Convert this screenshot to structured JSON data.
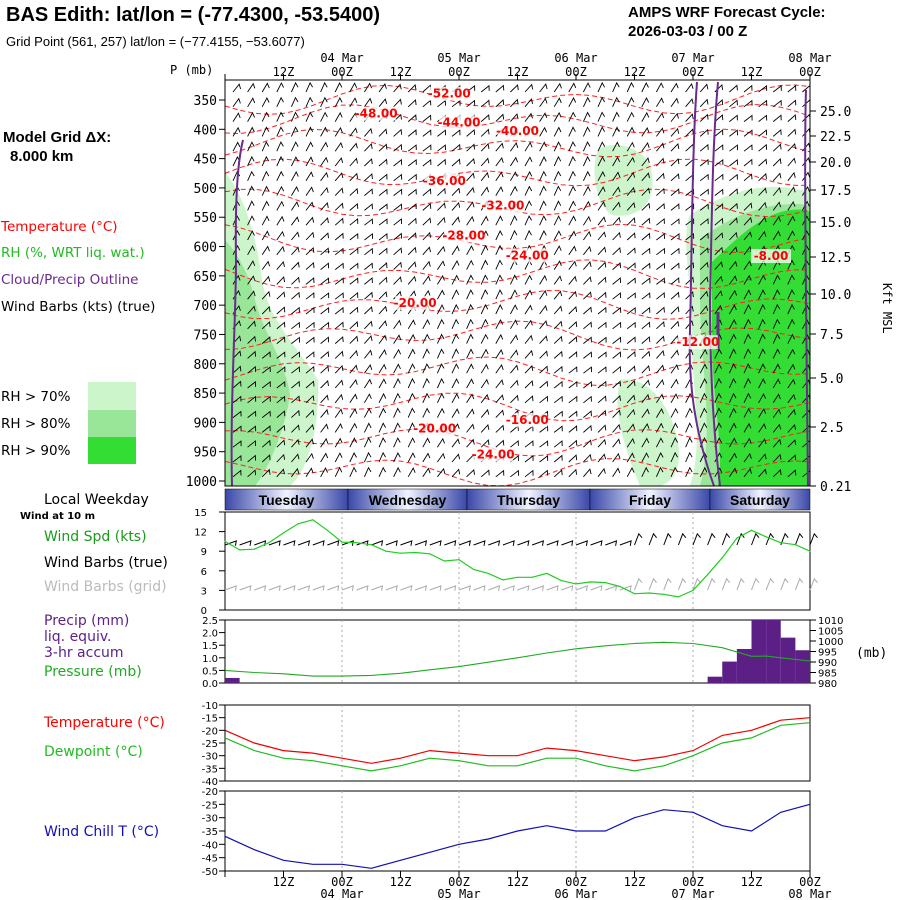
{
  "header": {
    "title": "BAS Edith:  lat/lon = (-77.4300, -53.5400)",
    "subtitle": "Grid Point (561, 257) lat/lon = (−77.4155, −53.6077)",
    "cycle_label": "AMPS WRF Forecast Cycle:",
    "cycle_value": "2026-03-03 / 00  Z"
  },
  "legend": {
    "grid_label": "Model Grid ΔX:",
    "grid_value": "8.000 km",
    "temperature": "Temperature (°C)",
    "rh": "RH (%, WRT liq. wat.)",
    "cloud": "Cloud/Precip Outline",
    "wind_barbs": "Wind Barbs (kts) (true)",
    "rh_levels": [
      "RH > 70%",
      "RH > 80%",
      "RH > 90%"
    ],
    "local_weekday": "Local Weekday",
    "wind_10m": "Wind at 10 m"
  },
  "colors": {
    "temperature": "#ff0000",
    "rh_green": "#22bb22",
    "cloud": "#6a2a8e",
    "rh70": "#ccf5cc",
    "rh80": "#99e699",
    "rh90": "#33dd33",
    "precip": "#5b1f86",
    "wind_chill": "#1010b0",
    "wind_label": "#1a9a1a"
  },
  "chart_data": [
    {
      "type": "heatmap",
      "name": "cross-section",
      "y_axis_title": "P (mb)",
      "pressure_ticks": [
        350,
        400,
        450,
        500,
        550,
        600,
        650,
        700,
        750,
        800,
        850,
        900,
        950,
        1000
      ],
      "height_label": "Kft MSL",
      "height_ticks": [
        "25.0",
        "22.5",
        "20.0",
        "17.5",
        "15.0",
        "12.5",
        "10.0",
        "7.5",
        "5.0",
        "2.5",
        "0.21"
      ],
      "time_hours": [
        0,
        12,
        24,
        36,
        48,
        60,
        72,
        84,
        96,
        108,
        120
      ],
      "time_top_labels": [
        "12Z",
        "00Z",
        "12Z",
        "00Z",
        "12Z",
        "00Z",
        "12Z",
        "00Z",
        "12Z",
        "00Z"
      ],
      "date_labels": [
        "04 Mar",
        "05 Mar",
        "06 Mar",
        "07 Mar",
        "08 Mar"
      ],
      "temperature_labels": [
        {
          "label": "-52.00",
          "t": 46,
          "p": 346
        },
        {
          "label": "-48.00",
          "t": 31,
          "p": 380
        },
        {
          "label": "-44.00",
          "t": 48,
          "p": 395
        },
        {
          "label": "-40.00",
          "t": 60,
          "p": 410
        },
        {
          "label": "-36.00",
          "t": 45,
          "p": 495
        },
        {
          "label": "-32.00",
          "t": 57,
          "p": 537
        },
        {
          "label": "-28.00",
          "t": 49,
          "p": 588
        },
        {
          "label": "-24.00",
          "t": 62,
          "p": 622
        },
        {
          "label": "-20.00",
          "t": 39,
          "p": 703
        },
        {
          "label": "-12.00",
          "t": 97,
          "p": 770
        },
        {
          "label": "-8.00",
          "t": 112,
          "p": 623
        },
        {
          "label": "-20.00",
          "t": 43,
          "p": 917
        },
        {
          "label": "-16.00",
          "t": 62,
          "p": 903
        },
        {
          "label": "-24.00",
          "t": 55,
          "p": 962
        }
      ]
    },
    {
      "type": "line",
      "name": "wind-speed",
      "weekdays": [
        "Tuesday",
        "Wednesday",
        "Thursday",
        "Friday",
        "Saturday"
      ],
      "ylabel": "Wind Spd (kts)",
      "labels": [
        "Wind Barbs (true)",
        "Wind Barbs (grid)"
      ],
      "ylim": [
        0,
        15
      ],
      "yticks": [
        0,
        3,
        6,
        9,
        12,
        15
      ],
      "x": [
        0,
        3,
        6,
        9,
        12,
        15,
        18,
        21,
        24,
        27,
        30,
        33,
        36,
        39,
        42,
        45,
        48,
        51,
        54,
        57,
        60,
        63,
        66,
        69,
        72,
        75,
        78,
        81,
        84,
        87,
        90,
        93,
        96,
        99,
        102,
        105,
        108,
        111,
        114,
        117,
        120
      ],
      "values": [
        10.5,
        9.2,
        9.3,
        10.3,
        11.8,
        13.2,
        13.8,
        12.2,
        10.4,
        10.3,
        10.0,
        9.0,
        8.7,
        8.8,
        8.6,
        7.5,
        7.7,
        6.2,
        5.6,
        4.6,
        5.0,
        5.0,
        5.6,
        4.5,
        4.0,
        4.3,
        4.2,
        3.6,
        2.5,
        2.6,
        2.4,
        2.0,
        3.0,
        5.4,
        8.0,
        11.0,
        12.2,
        11.2,
        10.3,
        10.0,
        9.0
      ]
    },
    {
      "type": "bar",
      "name": "precip-pressure",
      "labels": [
        "Precip (mm)",
        "liq. equiv.",
        "3-hr accum",
        "Pressure (mb)"
      ],
      "ylabel_right": "(mb)",
      "precip_ylim": [
        0,
        2.5
      ],
      "precip_yticks": [
        "0.0",
        "0.5",
        "1.0",
        "1.5",
        "2.0",
        "2.5"
      ],
      "pressure_ylim": [
        980,
        1010
      ],
      "pressure_yticks": [
        980,
        985,
        990,
        995,
        1000,
        1005,
        1010
      ],
      "precip_bars": [
        {
          "t": 0,
          "v": 0.2
        },
        {
          "t": 99,
          "v": 0.25
        },
        {
          "t": 102,
          "v": 0.85
        },
        {
          "t": 105,
          "v": 1.35
        },
        {
          "t": 108,
          "v": 2.7
        },
        {
          "t": 111,
          "v": 2.7
        },
        {
          "t": 114,
          "v": 1.8
        },
        {
          "t": 117,
          "v": 1.3
        }
      ],
      "pressure_x": [
        0,
        6,
        12,
        18,
        24,
        30,
        36,
        42,
        48,
        54,
        60,
        66,
        72,
        78,
        84,
        90,
        96,
        102,
        108,
        111,
        114,
        120
      ],
      "pressure_values": [
        986.0,
        985.0,
        984.4,
        983.3,
        983.3,
        983.6,
        984.6,
        986.3,
        987.8,
        989.9,
        992.0,
        994.3,
        996.3,
        997.7,
        998.8,
        999.4,
        998.8,
        996.8,
        992.7,
        992.8,
        992.0,
        990.5
      ]
    },
    {
      "type": "line",
      "name": "temperature-dewpoint",
      "labels": [
        "Temperature (°C)",
        "Dewpoint (°C)"
      ],
      "ylim": [
        -40,
        -10
      ],
      "yticks": [
        -10,
        -15,
        -20,
        -25,
        -30,
        -35,
        -40
      ],
      "x": [
        0,
        6,
        12,
        18,
        24,
        30,
        36,
        42,
        48,
        54,
        60,
        66,
        72,
        78,
        84,
        90,
        96,
        102,
        108,
        114,
        120
      ],
      "series": [
        {
          "name": "Temperature",
          "values": [
            -20,
            -25,
            -28,
            -29,
            -31,
            -33,
            -31,
            -28,
            -29,
            -30,
            -30,
            -27,
            -28,
            -30,
            -32,
            -30.5,
            -28,
            -22,
            -20,
            -16,
            -15
          ]
        },
        {
          "name": "Dewpoint",
          "values": [
            -23,
            -28,
            -31,
            -32,
            -34,
            -36,
            -34,
            -31,
            -32,
            -34,
            -34,
            -31,
            -31,
            -34,
            -36,
            -34,
            -30,
            -25,
            -23,
            -18,
            -17
          ]
        }
      ]
    },
    {
      "type": "line",
      "name": "wind-chill",
      "labels": [
        "Wind Chill T (°C)"
      ],
      "ylim": [
        -50,
        -20
      ],
      "yticks": [
        -20,
        -25,
        -30,
        -35,
        -40,
        -45,
        -50
      ],
      "x": [
        0,
        6,
        12,
        18,
        24,
        30,
        36,
        42,
        48,
        54,
        60,
        66,
        72,
        78,
        84,
        90,
        96,
        102,
        108,
        114,
        120
      ],
      "values": [
        -37,
        -42,
        -46,
        -47.5,
        -47.5,
        -49,
        -46,
        -43,
        -40,
        -38,
        -35,
        -33,
        -35,
        -35,
        -30,
        -27,
        -28,
        -33,
        -35,
        -28,
        -25
      ]
    }
  ]
}
